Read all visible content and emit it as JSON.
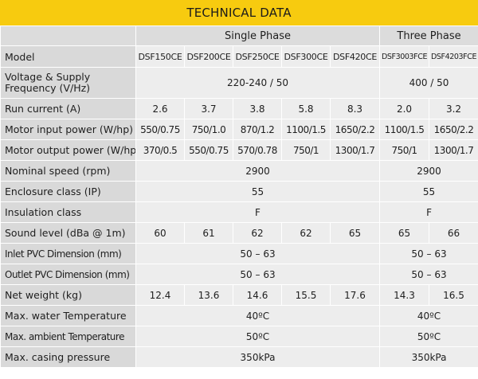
{
  "title": "TECHNICAL DATA",
  "colors": {
    "banner": "#f7cb0f",
    "label_bg": "#d9d9d9",
    "cell_bg": "#ededed"
  },
  "phases": {
    "single": "Single Phase",
    "three": "Three Phase"
  },
  "models": {
    "label": "Model",
    "values": [
      "DSF150CE",
      "DSF200CE",
      "DSF250CE",
      "DSF300CE",
      "DSF420CE",
      "DSF3003FCE",
      "DSF4203FCE"
    ]
  },
  "rows": {
    "voltage": {
      "label": "Voltage & Supply Frequency (V/Hz)",
      "single": "220-240 / 50",
      "three": "400 / 50"
    },
    "run_current": {
      "label": "Run current (A)",
      "values": [
        "2.6",
        "3.7",
        "3.8",
        "5.8",
        "8.3",
        "2.0",
        "3.2"
      ]
    },
    "motor_input": {
      "label": "Motor input power (W/hp)",
      "values": [
        "550/0.75",
        "750/1.0",
        "870/1.2",
        "1100/1.5",
        "1650/2.2",
        "1100/1.5",
        "1650/2.2"
      ]
    },
    "motor_output": {
      "label": "Motor output power (W/hp)",
      "values": [
        "370/0.5",
        "550/0.75",
        "570/0.78",
        "750/1",
        "1300/1.7",
        "750/1",
        "1300/1.7"
      ]
    },
    "nominal_speed": {
      "label": "Nominal speed (rpm)",
      "single": "2900",
      "three": "2900"
    },
    "enclosure": {
      "label": "Enclosure class (IP)",
      "single": "55",
      "three": "55"
    },
    "insulation": {
      "label": "Insulation class",
      "single": "F",
      "three": "F"
    },
    "sound": {
      "label": "Sound level (dBa @ 1m)",
      "values": [
        "60",
        "61",
        "62",
        "62",
        "65",
        "65",
        "66"
      ]
    },
    "inlet": {
      "label": "Inlet PVC Dimension (mm)",
      "single": "50 – 63",
      "three": "50 – 63"
    },
    "outlet": {
      "label": "Outlet PVC Dimension (mm)",
      "single": "50 – 63",
      "three": "50 – 63"
    },
    "net_weight": {
      "label": "Net weight (kg)",
      "values": [
        "12.4",
        "13.6",
        "14.6",
        "15.5",
        "17.6",
        "14.3",
        "16.5"
      ]
    },
    "max_water": {
      "label": "Max. water Temperature",
      "single": "40ºC",
      "three": "40ºC"
    },
    "max_ambient": {
      "label": "Max. ambient Temperature",
      "single": "50ºC",
      "three": "50ºC"
    },
    "max_casing": {
      "label": "Max. casing pressure",
      "single": "350kPa",
      "three": "350kPa"
    }
  }
}
